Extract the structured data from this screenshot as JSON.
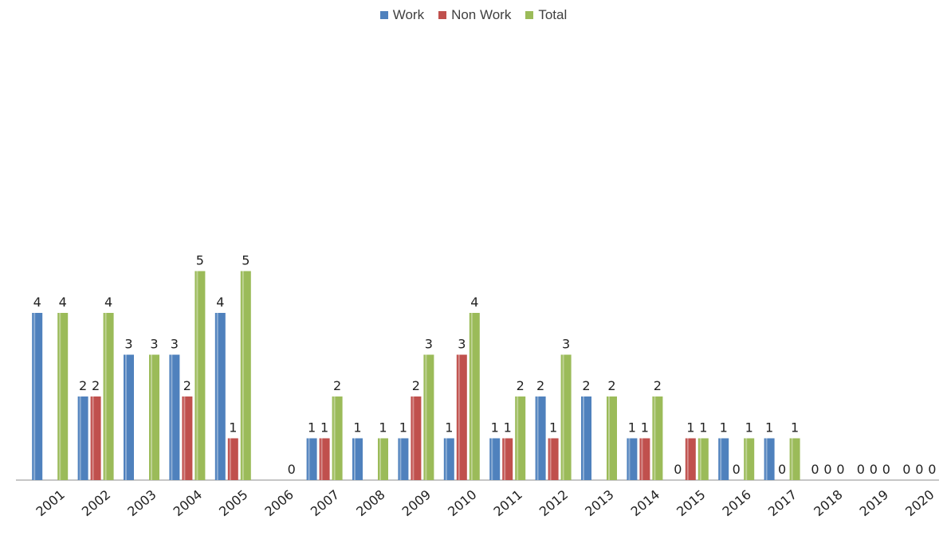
{
  "chart_data": {
    "type": "bar",
    "categories": [
      "2001",
      "2002",
      "2003",
      "2004",
      "2005",
      "2006",
      "2007",
      "2008",
      "2009",
      "2010",
      "2011",
      "2012",
      "2013",
      "2014",
      "2015",
      "2016",
      "2017",
      "2018",
      "2019",
      "2020"
    ],
    "series": [
      {
        "name": "Work",
        "color": "#4f81bd",
        "values": [
          4,
          2,
          3,
          3,
          4,
          null,
          1,
          1,
          1,
          1,
          1,
          2,
          2,
          1,
          0,
          1,
          1,
          0,
          0,
          0
        ]
      },
      {
        "name": "Non Work",
        "color": "#c0504d",
        "values": [
          null,
          2,
          null,
          2,
          1,
          null,
          1,
          null,
          2,
          3,
          1,
          1,
          null,
          1,
          1,
          0,
          0,
          0,
          0,
          0
        ]
      },
      {
        "name": "Total",
        "color": "#9bbb59",
        "values": [
          4,
          4,
          3,
          5,
          5,
          0,
          2,
          1,
          3,
          4,
          2,
          3,
          2,
          2,
          1,
          1,
          1,
          0,
          0,
          0
        ]
      }
    ],
    "ylim": [
      0,
      5
    ],
    "legend_position": "top",
    "grid": false,
    "title": "",
    "xlabel": "",
    "ylabel": ""
  }
}
